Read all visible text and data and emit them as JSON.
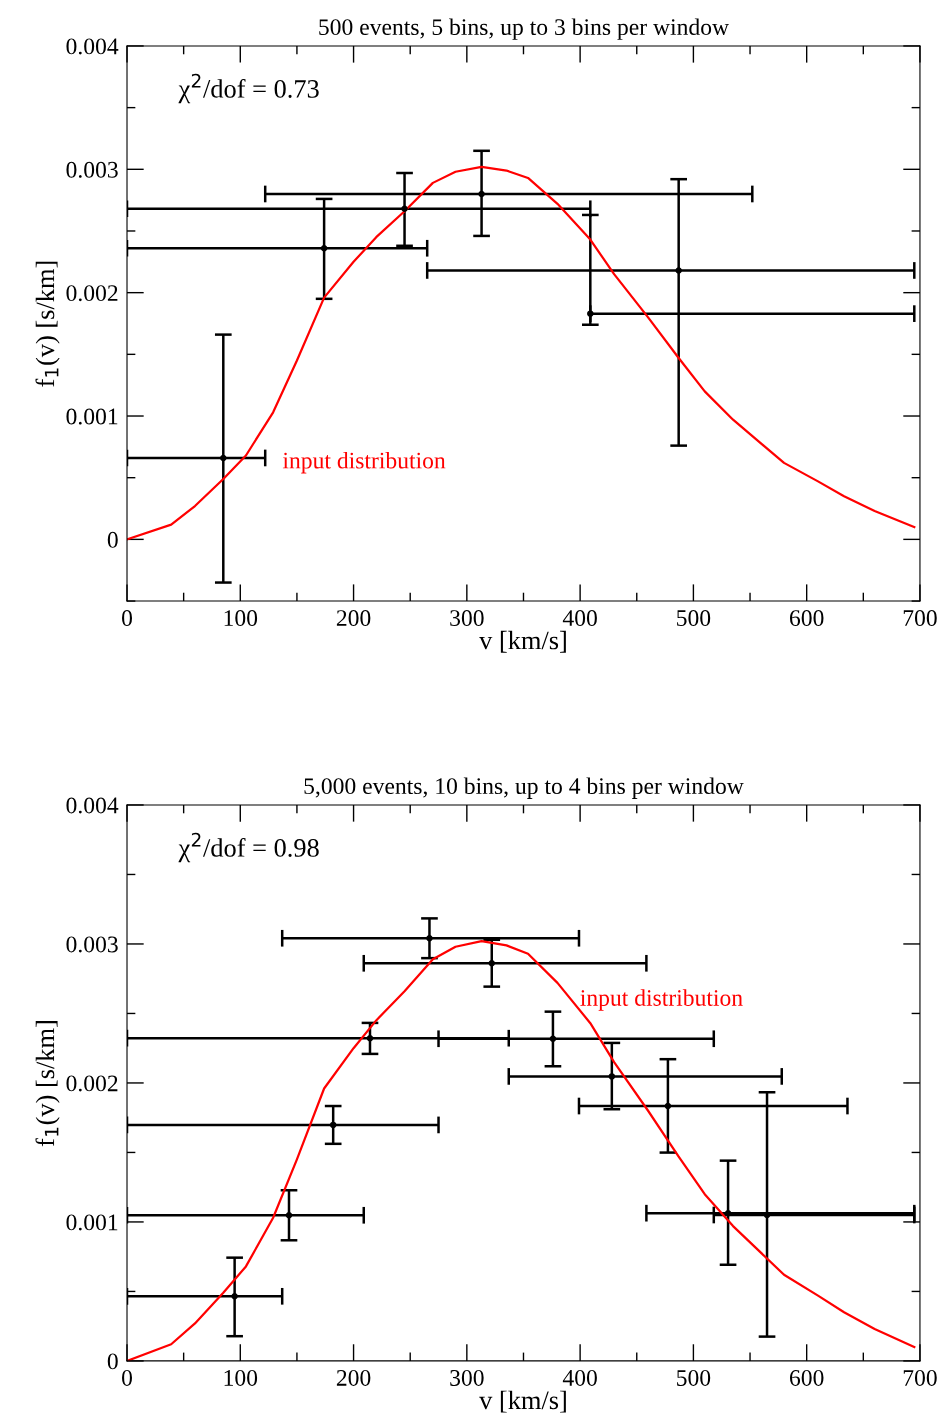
{
  "chart_data": [
    {
      "type": "scatter",
      "title": "500 events, 5 bins, up to 3 bins per window",
      "xlabel": "v [km/s]",
      "ylabel": "f$_{1}$(v) [s/km]",
      "xlim": [
        0,
        700
      ],
      "xticks": [
        0,
        100,
        200,
        300,
        400,
        500,
        600,
        700
      ],
      "ylim": [
        -0.0005,
        0.004
      ],
      "yticks": [
        0,
        0.001,
        0.002,
        0.003,
        0.004
      ],
      "grid": false,
      "legend": false,
      "annotations": [
        "χ$^{2}$/dof = 0.73",
        "input distribution"
      ],
      "series": [
        {
          "type": "scatter",
          "marker": "circle",
          "color": "#000000",
          "x": [
            85,
            174,
            245,
            313,
            409,
            487
          ],
          "values": [
            0.00066,
            0.00236,
            0.00268,
            0.0028,
            0.00183,
            0.00218
          ],
          "errors": [
            [
              -0.00035,
              0.00166
            ],
            [
              0.00195,
              0.00276
            ],
            [
              0.00238,
              0.00297
            ],
            [
              0.00246,
              0.00315
            ],
            [
              0.00174,
              0.00263
            ],
            [
              0.00076,
              0.00292
            ]
          ],
          "xerrors": [
            [
              0,
              122
            ],
            [
              0,
              265
            ],
            [
              0,
              409
            ],
            [
              122,
              552
            ],
            [
              409,
              695
            ],
            [
              265,
              695
            ]
          ]
        },
        {
          "type": "line",
          "color": "#ff0000",
          "line_style": "solid",
          "x": [
            0,
            39,
            60,
            85,
            105,
            129,
            150,
            174,
            200,
            220,
            245,
            270,
            290,
            313,
            335,
            354,
            380,
            409,
            430,
            460,
            487,
            510,
            535,
            580,
            610,
            633,
            660,
            695
          ],
          "values": [
            0,
            0.00012,
            0.00027,
            0.00049,
            0.00068,
            0.00103,
            0.00145,
            0.00196,
            0.00225,
            0.00245,
            0.00266,
            0.00289,
            0.00298,
            0.00302,
            0.00299,
            0.00293,
            0.00272,
            0.00243,
            0.00215,
            0.0018,
            0.00147,
            0.0012,
            0.00097,
            0.00062,
            0.00047,
            0.00035,
            0.00023,
            0.0001
          ]
        }
      ]
    },
    {
      "type": "scatter",
      "title": "5,000 events, 10 bins, up to 4 bins per window",
      "xlabel": "v [km/s]",
      "ylabel": "f$_{1}$(v) [s/km]",
      "xlim": [
        0,
        700
      ],
      "xticks": [
        0,
        100,
        200,
        300,
        400,
        500,
        600,
        700
      ],
      "ylim": [
        0,
        0.004
      ],
      "yticks": [
        0,
        0.001,
        0.002,
        0.003,
        0.004
      ],
      "grid": false,
      "legend": false,
      "annotations": [
        "χ$^{2}$/dof = 0.98",
        "input distribution"
      ],
      "series": [
        {
          "type": "scatter",
          "marker": "circle",
          "color": "#000000",
          "x": [
            95,
            143,
            182,
            214.5,
            267,
            322,
            376,
            428,
            477.5,
            530.6,
            565
          ],
          "values": [
            0.000465,
            0.001048,
            0.001698,
            0.002322,
            0.003041,
            0.002861,
            0.002318,
            0.002047,
            0.001834,
            0.001063,
            0.00105
          ],
          "errors": [
            [
              0.000178,
              0.000743
            ],
            [
              0.000868,
              0.001228
            ],
            [
              0.001562,
              0.001834
            ],
            [
              0.002209,
              0.002432
            ],
            [
              0.002898,
              0.003184
            ],
            [
              0.002693,
              0.00303
            ],
            [
              0.00212,
              0.002513
            ],
            [
              0.001811,
              0.002288
            ],
            [
              0.001499,
              0.002171
            ],
            [
              0.000692,
              0.001441
            ],
            [
              0.000175,
              0.001933
            ]
          ],
          "xerrors": [
            [
              0,
              137
            ],
            [
              0,
              209
            ],
            [
              0,
              275
            ],
            [
              0,
              337
            ],
            [
              137,
              399
            ],
            [
              209,
              458.5
            ],
            [
              275,
              518
            ],
            [
              337,
              578
            ],
            [
              399,
              636
            ],
            [
              458.5,
              695
            ],
            [
              518,
              695
            ]
          ]
        },
        {
          "type": "line",
          "color": "#ff0000",
          "line_style": "solid",
          "x": [
            0,
            39,
            60,
            85,
            105,
            129,
            150,
            174,
            200,
            220,
            245,
            270,
            290,
            313,
            335,
            354,
            380,
            409,
            430,
            460,
            487,
            510,
            535,
            580,
            610,
            633,
            660,
            695
          ],
          "values": [
            0,
            0.00012,
            0.00027,
            0.00049,
            0.00068,
            0.00103,
            0.00145,
            0.00196,
            0.00225,
            0.00245,
            0.00266,
            0.00289,
            0.00298,
            0.00302,
            0.00299,
            0.00293,
            0.00272,
            0.00243,
            0.00215,
            0.0018,
            0.00147,
            0.0012,
            0.00097,
            0.00062,
            0.00047,
            0.00035,
            0.00023,
            0.0001
          ]
        }
      ]
    }
  ]
}
